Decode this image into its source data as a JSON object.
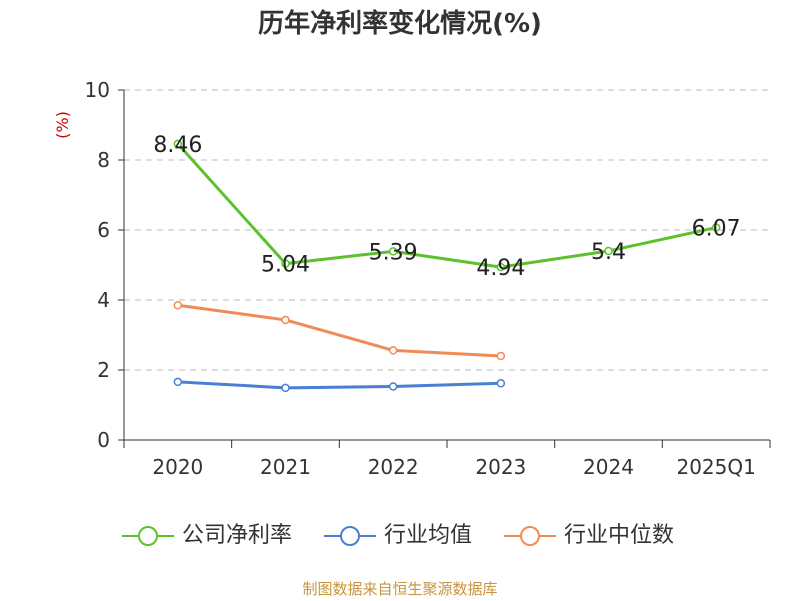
{
  "title": "历年净利率变化情况(%)",
  "footer": "制图数据来自恒生聚源数据库",
  "chart_data": {
    "type": "line",
    "title": "历年净利率变化情况(%)",
    "ylabel": "(%)",
    "ylim": [
      0,
      10
    ],
    "yticks": [
      0,
      2,
      4,
      6,
      8,
      10
    ],
    "grid": true,
    "legend_position": "bottom",
    "categories": [
      "2020",
      "2021",
      "2022",
      "2023",
      "2024",
      "2025Q1"
    ],
    "series": [
      {
        "name": "公司净利率",
        "color": "#5cc12b",
        "values": [
          8.46,
          5.04,
          5.39,
          4.94,
          5.4,
          6.07
        ],
        "labels": [
          "8.46",
          "5.04",
          "5.39",
          "4.94",
          "5.4",
          "6.07"
        ]
      },
      {
        "name": "行业均值",
        "color": "#4a7fd4",
        "values": [
          1.66,
          1.49,
          1.53,
          1.62,
          null,
          null
        ]
      },
      {
        "name": "行业中位数",
        "color": "#f08b55",
        "values": [
          3.85,
          3.43,
          2.56,
          2.4,
          null,
          null
        ]
      }
    ]
  }
}
